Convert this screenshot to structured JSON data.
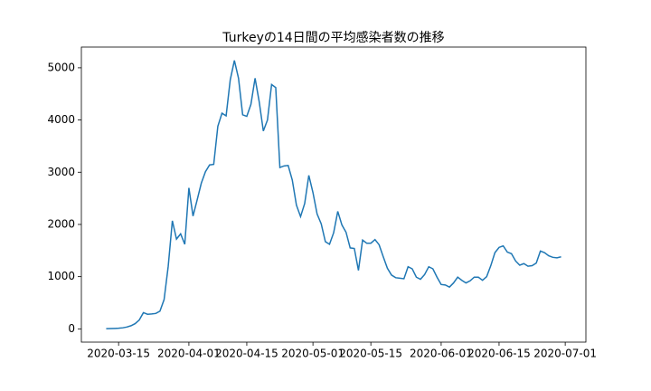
{
  "chart_data": {
    "type": "line",
    "title": "Turkeyの14日間の平均感染者数の推移",
    "color": "#1f77b4",
    "x": [
      "2020-03-12",
      "2020-03-13",
      "2020-03-14",
      "2020-03-15",
      "2020-03-16",
      "2020-03-17",
      "2020-03-18",
      "2020-03-19",
      "2020-03-20",
      "2020-03-21",
      "2020-03-22",
      "2020-03-23",
      "2020-03-24",
      "2020-03-25",
      "2020-03-26",
      "2020-03-27",
      "2020-03-28",
      "2020-03-29",
      "2020-03-30",
      "2020-03-31",
      "2020-04-01",
      "2020-04-02",
      "2020-04-03",
      "2020-04-04",
      "2020-04-05",
      "2020-04-06",
      "2020-04-07",
      "2020-04-08",
      "2020-04-09",
      "2020-04-10",
      "2020-04-11",
      "2020-04-12",
      "2020-04-13",
      "2020-04-14",
      "2020-04-15",
      "2020-04-16",
      "2020-04-17",
      "2020-04-18",
      "2020-04-19",
      "2020-04-20",
      "2020-04-21",
      "2020-04-22",
      "2020-04-23",
      "2020-04-24",
      "2020-04-25",
      "2020-04-26",
      "2020-04-27",
      "2020-04-28",
      "2020-04-29",
      "2020-04-30",
      "2020-05-01",
      "2020-05-02",
      "2020-05-03",
      "2020-05-04",
      "2020-05-05",
      "2020-05-06",
      "2020-05-07",
      "2020-05-08",
      "2020-05-09",
      "2020-05-10",
      "2020-05-11",
      "2020-05-12",
      "2020-05-13",
      "2020-05-14",
      "2020-05-15",
      "2020-05-16",
      "2020-05-17",
      "2020-05-18",
      "2020-05-19",
      "2020-05-20",
      "2020-05-21",
      "2020-05-22",
      "2020-05-23",
      "2020-05-24",
      "2020-05-25",
      "2020-05-26",
      "2020-05-27",
      "2020-05-28",
      "2020-05-29",
      "2020-05-30",
      "2020-05-31",
      "2020-06-01",
      "2020-06-02",
      "2020-06-03",
      "2020-06-04",
      "2020-06-05",
      "2020-06-06",
      "2020-06-07",
      "2020-06-08",
      "2020-06-09",
      "2020-06-10",
      "2020-06-11",
      "2020-06-12",
      "2020-06-13",
      "2020-06-14",
      "2020-06-15",
      "2020-06-16",
      "2020-06-17",
      "2020-06-18",
      "2020-06-19",
      "2020-06-20",
      "2020-06-21",
      "2020-06-22",
      "2020-06-23",
      "2020-06-24",
      "2020-06-25",
      "2020-06-26",
      "2020-06-27",
      "2020-06-28",
      "2020-06-29",
      "2020-06-30"
    ],
    "values": [
      3,
      5,
      8,
      12,
      20,
      35,
      60,
      100,
      170,
      310,
      280,
      285,
      295,
      340,
      560,
      1200,
      2070,
      1720,
      1820,
      1620,
      2700,
      2160,
      2470,
      2790,
      3010,
      3140,
      3150,
      3880,
      4130,
      4080,
      4770,
      5140,
      4800,
      4100,
      4070,
      4300,
      4800,
      4350,
      3790,
      4000,
      4680,
      4620,
      3090,
      3120,
      3130,
      2850,
      2370,
      2150,
      2400,
      2940,
      2610,
      2200,
      2010,
      1670,
      1620,
      1840,
      2250,
      1990,
      1850,
      1550,
      1540,
      1120,
      1700,
      1640,
      1640,
      1710,
      1610,
      1380,
      1160,
      1030,
      980,
      970,
      960,
      1190,
      1150,
      990,
      950,
      1040,
      1190,
      1150,
      990,
      850,
      840,
      800,
      880,
      990,
      930,
      880,
      920,
      990,
      990,
      930,
      1000,
      1210,
      1460,
      1560,
      1590,
      1470,
      1440,
      1300,
      1220,
      1250,
      1200,
      1210,
      1260,
      1490,
      1460,
      1400,
      1370,
      1360,
      1380
    ],
    "xlim": [
      "2020-03-06",
      "2020-07-06"
    ],
    "xticks": [
      "2020-03-15",
      "2020-04-01",
      "2020-04-15",
      "2020-05-01",
      "2020-05-15",
      "2020-06-01",
      "2020-06-15",
      "2020-07-01"
    ],
    "ylim": [
      -254,
      5397
    ],
    "yticks": [
      0,
      1000,
      2000,
      3000,
      4000,
      5000
    ]
  }
}
